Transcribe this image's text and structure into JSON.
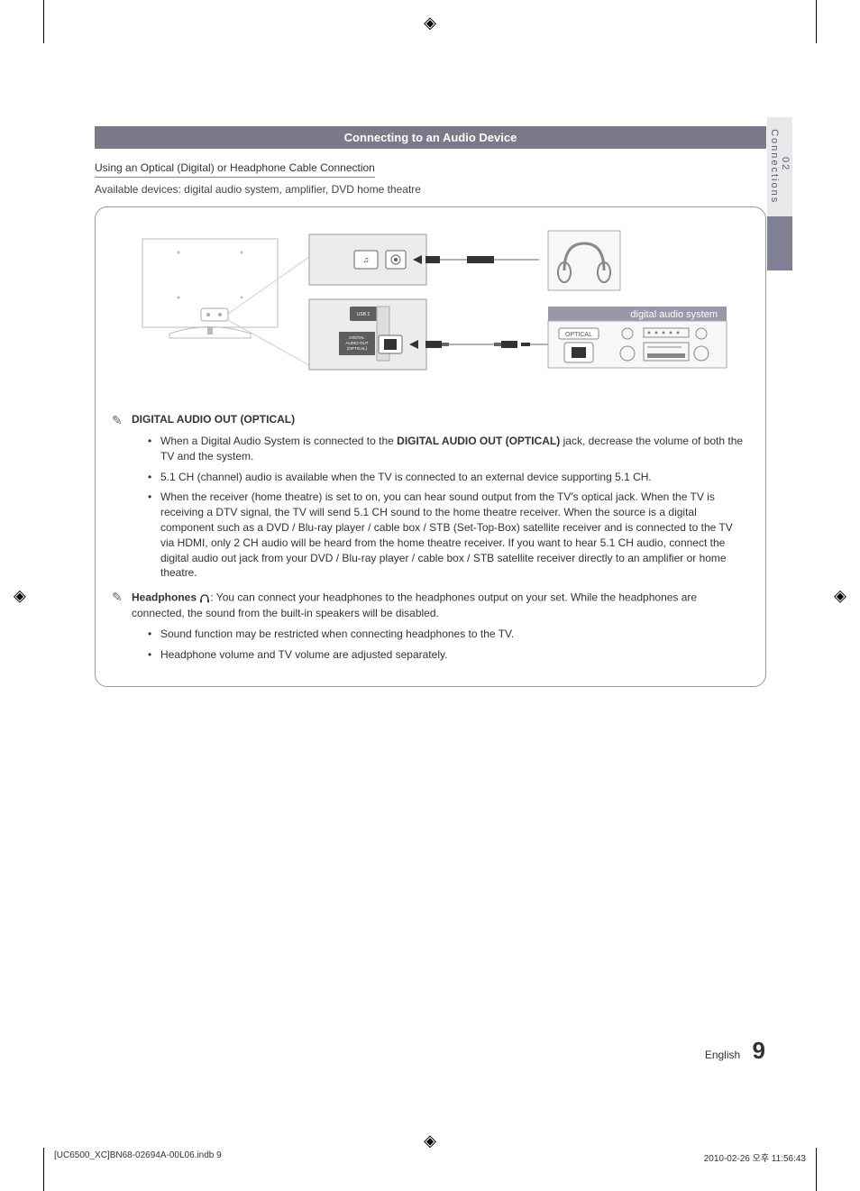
{
  "crop_marks": {
    "symbol": "◈"
  },
  "side_tab": {
    "chapter": "02",
    "label": "Connections"
  },
  "header": {
    "title": "Connecting to an Audio Device"
  },
  "subheader": "Using an Optical (Digital) or Headphone Cable Connection",
  "devices_line": "Available devices: digital audio system, amplifier, DVD home theatre",
  "diagram": {
    "tv_back_label": "DIGITAL\nAUDIO OUT\n(OPTICAL)",
    "usb_label": "USB 2",
    "optical_label": "OPTICAL",
    "device_label": "digital audio system",
    "colors": {
      "panel_fill": "#f4f4f4",
      "dark_band": "#5e5e5e",
      "stroke": "#888888",
      "cable_dark": "#444444",
      "white": "#ffffff"
    }
  },
  "section1": {
    "title": "DIGITAL AUDIO OUT (OPTICAL)",
    "bullets": [
      {
        "pre": "When a Digital Audio System is connected to the ",
        "bold": "DIGITAL AUDIO OUT (OPTICAL)",
        "post": " jack, decrease the volume of both the TV and the system."
      },
      {
        "text": "5.1 CH (channel) audio is available when the TV is connected to an external device supporting 5.1 CH."
      },
      {
        "text": "When the receiver (home theatre) is set to on, you can hear sound output from the TV's optical jack. When the TV is receiving a DTV signal, the TV will send 5.1 CH sound to the home theatre receiver. When the source is a digital component such as a DVD / Blu-ray player / cable box / STB (Set-Top-Box) satellite receiver and is connected to the TV via HDMI, only 2 CH audio will be heard from the home theatre receiver. If you want to hear 5.1 CH audio, connect the digital audio out jack from your DVD / Blu-ray player / cable box / STB satellite receiver directly to an amplifier or home theatre."
      }
    ]
  },
  "section2": {
    "title": "Headphones",
    "lead": ": You can connect your headphones to the headphones output on your set. While the headphones are connected, the sound from the built-in speakers will be disabled.",
    "bullets": [
      "Sound function may be restricted when  connecting headphones to the TV.",
      "Headphone volume and TV volume are adjusted separately."
    ]
  },
  "footer": {
    "lang": "English",
    "page": "9"
  },
  "print_info": {
    "left": "[UC6500_XC]BN68-02694A-00L06.indb   9",
    "right": "2010-02-26   오후 11:56:43"
  },
  "note_icon": "✎"
}
